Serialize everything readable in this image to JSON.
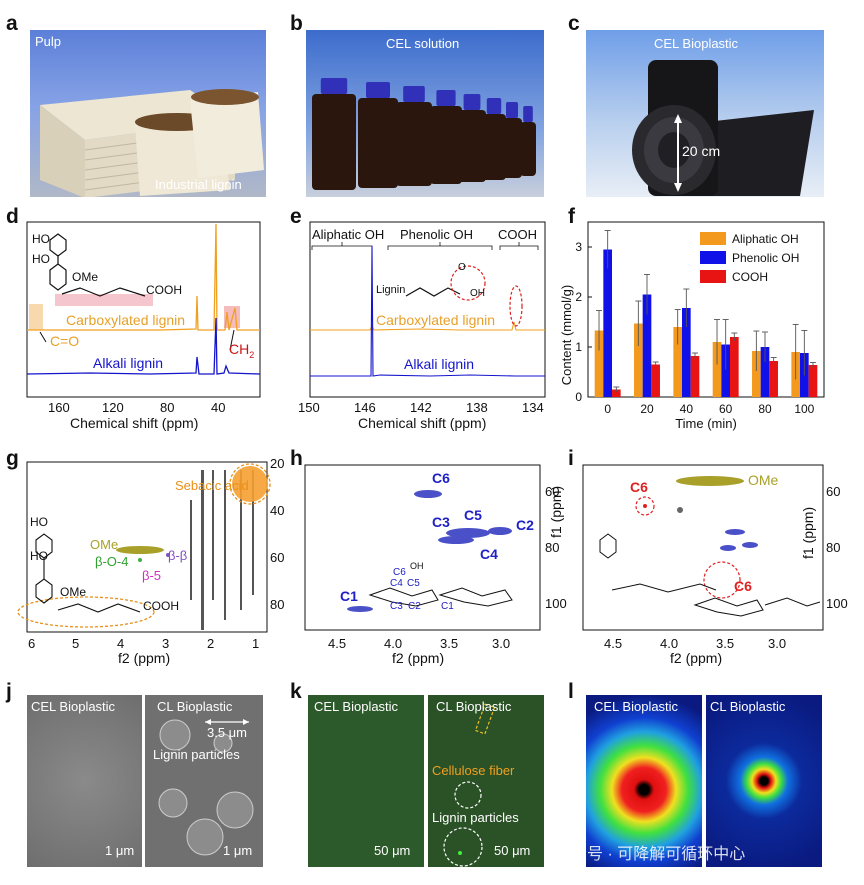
{
  "panels": {
    "a": {
      "letter": "a",
      "label_top": "Pulp",
      "label_bottom": "Industrial lignin"
    },
    "b": {
      "letter": "b",
      "label": "CEL solution"
    },
    "c": {
      "letter": "c",
      "label": "CEL Bioplastic",
      "scale": "20 cm"
    },
    "d": {
      "letter": "d",
      "xlabel": "Chemical shift (ppm)",
      "xticks": [
        "160",
        "120",
        "80",
        "40"
      ],
      "carboxylated": "Carboxylated lignin",
      "alkali": "Alkali lignin",
      "co": "C=O",
      "ch2": "CH",
      "ch2_sub": "2"
    },
    "e": {
      "letter": "e",
      "xlabel": "Chemical shift (ppm)",
      "xticks": [
        "150",
        "146",
        "142",
        "138",
        "134"
      ],
      "region1": "Aliphatic OH",
      "region2": "Phenolic OH",
      "region3": "COOH",
      "lignin": "Lignin",
      "oh": "OH",
      "o": "O",
      "carboxylated": "Carboxylated lignin",
      "alkali": "Alkali lignin"
    },
    "f": {
      "letter": "f"
    },
    "g": {
      "letter": "g",
      "xlabel": "f2 (ppm)",
      "xticks": [
        "6",
        "5",
        "4",
        "3",
        "2",
        "1"
      ],
      "yticks": [
        "20",
        "40",
        "60",
        "80"
      ],
      "sebacic": "Sebacic acid",
      "ome": "OMe",
      "bo4": "β-O-4",
      "bb": "β-β",
      "b5": "β-5",
      "cooh": "COOH"
    },
    "h": {
      "letter": "h",
      "xlabel": "f2 (ppm)",
      "ylabel": "f1 (ppm)",
      "xticks": [
        "4.5",
        "4.0",
        "3.5",
        "3.0"
      ],
      "yticks": [
        "60",
        "80",
        "100"
      ],
      "c1": "C1",
      "c2": "C2",
      "c3": "C3",
      "c4": "C4",
      "c5": "C5",
      "c6": "C6",
      "oh": "OH"
    },
    "i": {
      "letter": "i",
      "xlabel": "f2 (ppm)",
      "ylabel": "f1 (ppm)",
      "xticks": [
        "4.5",
        "4.0",
        "3.5",
        "3.0"
      ],
      "yticks": [
        "60",
        "80",
        "100"
      ],
      "ome": "OMe",
      "c6a": "C6",
      "c6b": "C6"
    },
    "j": {
      "letter": "j",
      "left": "CEL Bioplastic",
      "right": "CL Bioplastic",
      "dim": "3.5 μm",
      "particles": "Lignin particles",
      "scale": "1 μm"
    },
    "k": {
      "letter": "k",
      "left": "CEL Bioplastic",
      "right": "CL Bioplastic",
      "fiber": "Cellulose fiber",
      "particles": "Lignin particles",
      "scale": "50 μm"
    },
    "l": {
      "letter": "l",
      "left": "CEL Bioplastic",
      "right": "CL Bioplastic"
    },
    "watermark": "公众号 · 可降解可循环中心"
  },
  "chart_data": {
    "type": "bar",
    "categories": [
      "0",
      "20",
      "40",
      "60",
      "80",
      "100"
    ],
    "xlabel": "Time (min)",
    "ylabel": "Content (mmol/g)",
    "ylim": [
      0,
      3.5
    ],
    "yticks": [
      "0",
      "1",
      "2",
      "3"
    ],
    "legend_position": "top-right",
    "colors": [
      "#f39a1e",
      "#1010e8",
      "#e81414"
    ],
    "series": [
      {
        "name": "Aliphatic OH",
        "values": [
          1.33,
          1.47,
          1.4,
          1.1,
          0.92,
          0.9
        ],
        "errors": [
          0.4,
          0.45,
          0.35,
          0.45,
          0.4,
          0.55
        ]
      },
      {
        "name": "Phenolic OH",
        "values": [
          2.95,
          2.05,
          1.78,
          1.05,
          1.0,
          0.88
        ],
        "errors": [
          0.38,
          0.4,
          0.38,
          0.5,
          0.3,
          0.45
        ]
      },
      {
        "name": "COOH",
        "values": [
          0.15,
          0.65,
          0.82,
          1.2,
          0.72,
          0.64
        ],
        "errors": [
          0.05,
          0.05,
          0.06,
          0.08,
          0.07,
          0.05
        ]
      }
    ]
  }
}
